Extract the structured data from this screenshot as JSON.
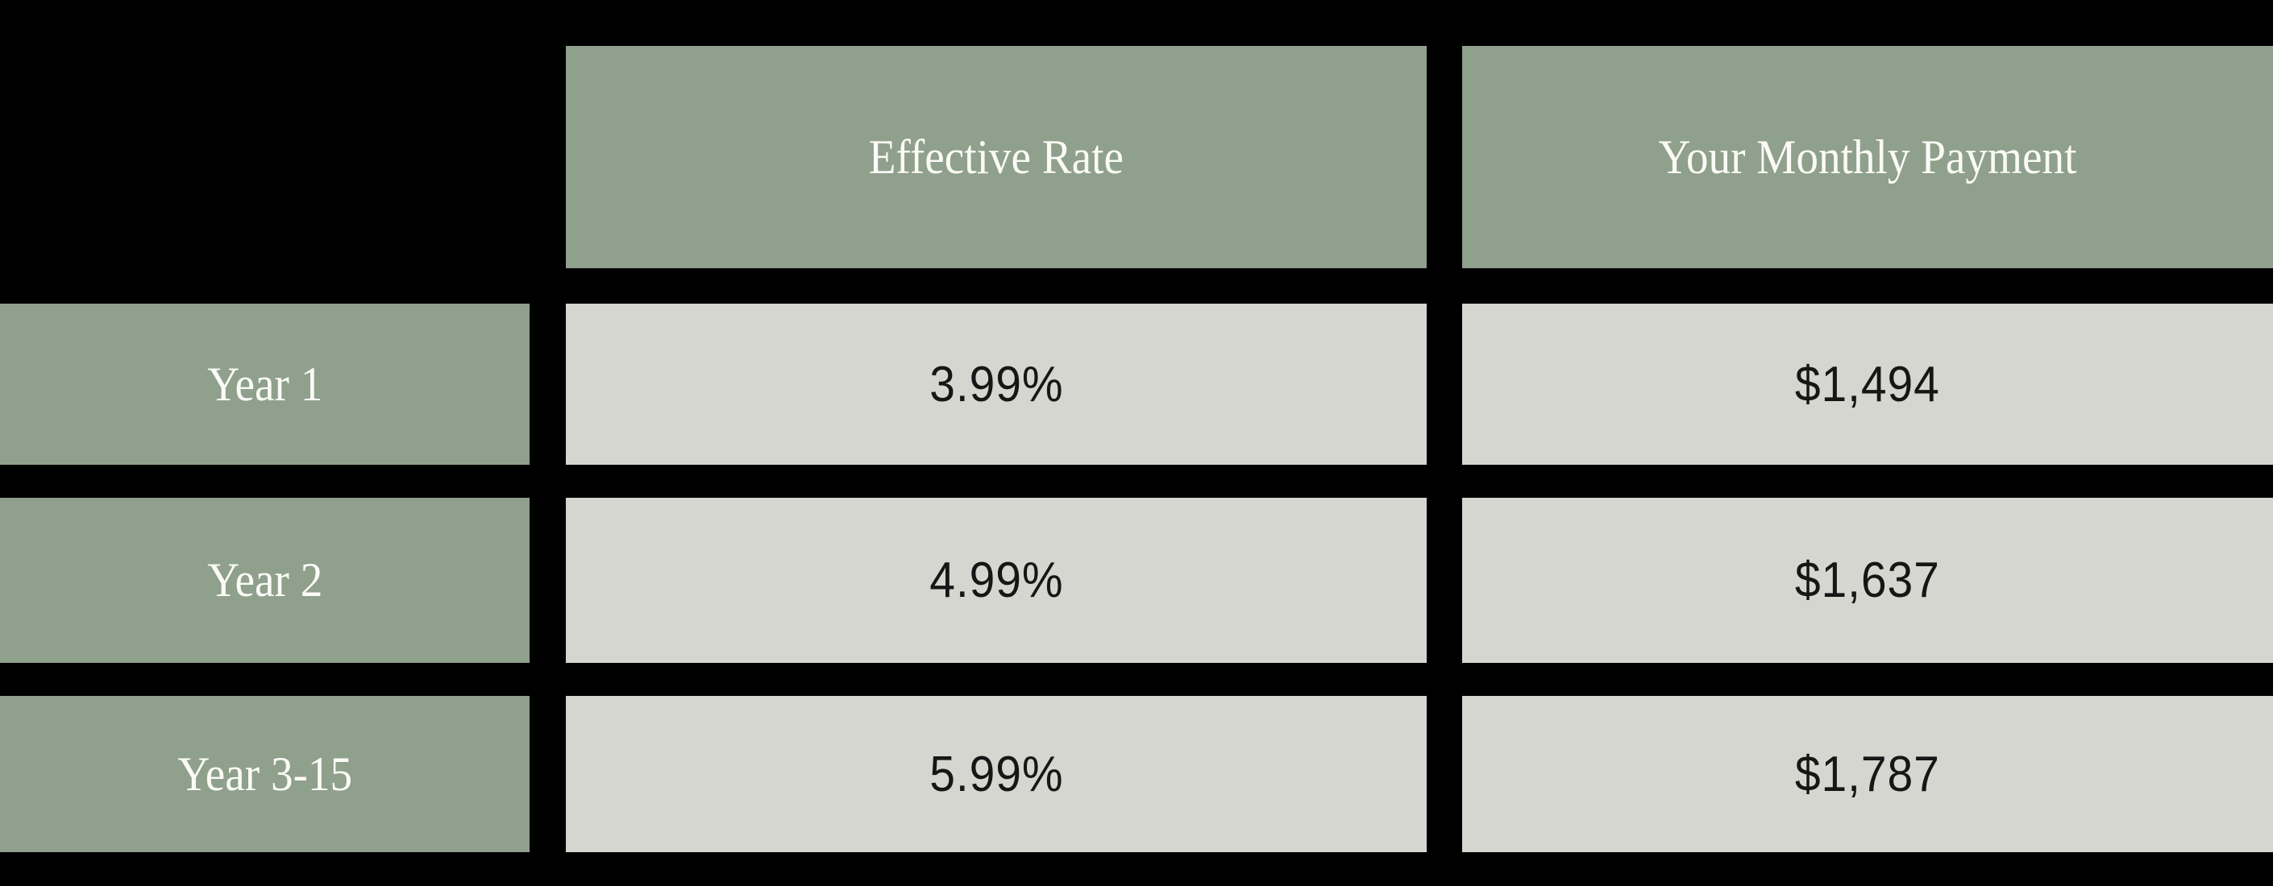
{
  "chart_data": {
    "type": "table",
    "columns": [
      "",
      "Effective Rate",
      "Your Monthly Payment"
    ],
    "rows": [
      [
        "Year 1",
        "3.99%",
        "$1,494"
      ],
      [
        "Year 2",
        "4.99%",
        "$1,637"
      ],
      [
        "Year 3-15",
        "5.99%",
        "$1,787"
      ]
    ],
    "layout_hints": {
      "header_over_label_column": false,
      "grid": "black background acts as thick cell gutters",
      "label_and_header_cells": "sage green with white serif text",
      "data_cells": "light gray with dark thin sans-serif text"
    }
  },
  "colors": {
    "background": "#000000",
    "header_cell_bg": "#8FA08C",
    "data_cell_bg": "#D5D6D0",
    "header_text": "#FBFBF6",
    "data_text": "#161616"
  }
}
